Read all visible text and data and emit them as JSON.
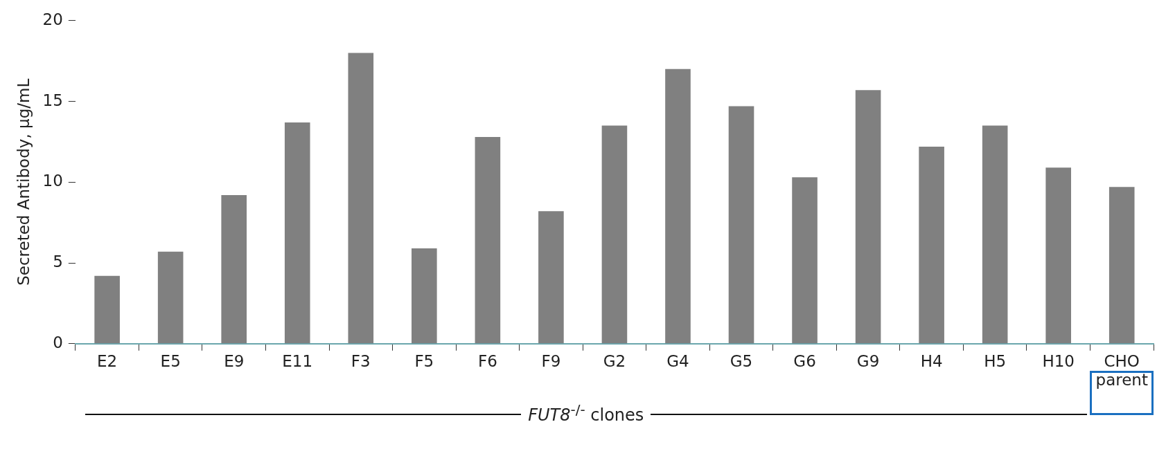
{
  "chart_data": {
    "type": "bar",
    "ylabel": "Secreted Antibody, µg/mL",
    "xlabel": "FUT8$^{-/-}$ clones",
    "categories": [
      "E2",
      "E5",
      "E9",
      "E11",
      "F3",
      "F5",
      "F6",
      "F9",
      "G2",
      "G4",
      "G5",
      "G6",
      "G9",
      "H4",
      "H5",
      "H10",
      "CHO parent"
    ],
    "values": [
      4.2,
      5.7,
      9.2,
      13.7,
      18.0,
      5.9,
      12.8,
      8.2,
      13.5,
      17.0,
      14.7,
      10.3,
      15.7,
      12.2,
      13.5,
      10.9,
      9.7
    ],
    "color": "#808080",
    "ylim": [
      0,
      20
    ],
    "yticks": [
      0,
      5,
      10,
      15,
      20
    ],
    "grid": false,
    "legend": false
  }
}
